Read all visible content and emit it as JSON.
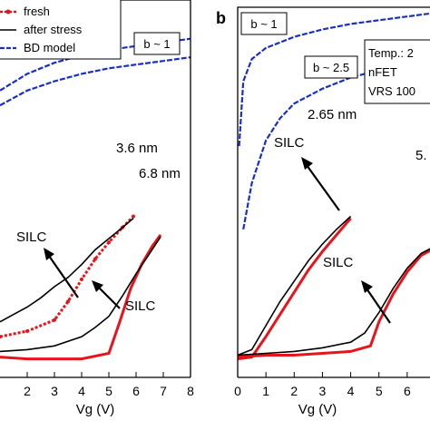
{
  "chart_data": [
    {
      "type": "line",
      "panel": "a",
      "xlabel": "Vg (V)",
      "xticks": [
        "2",
        "3",
        "4",
        "5",
        "6",
        "7",
        "8"
      ],
      "xlim": [
        1.0,
        8.0
      ],
      "legend": {
        "placement": "top-left",
        "entries": [
          "fresh",
          "after stress",
          "BD model"
        ],
        "colors": [
          "#e8141c",
          "#000000",
          "#1a2fc4"
        ]
      },
      "boxes": [
        {
          "text": "b ~ 1"
        }
      ],
      "annotations": [
        "3.6 nm",
        "6.8 nm",
        "SILC",
        "SILC"
      ],
      "series": [
        {
          "name": "fresh",
          "color": "#e8141c",
          "dashed": true,
          "points": [
            [
              1.0,
              0.22
            ],
            [
              2.0,
              0.25
            ],
            [
              3.0,
              0.31
            ],
            [
              3.5,
              0.41
            ],
            [
              4.0,
              0.53
            ],
            [
              4.5,
              0.64
            ],
            [
              5.0,
              0.73
            ],
            [
              5.5,
              0.81
            ],
            [
              5.9,
              0.87
            ]
          ]
        },
        {
          "name": "after stress",
          "color": "#000000",
          "points": [
            [
              1.0,
              0.3
            ],
            [
              1.5,
              0.34
            ],
            [
              2.0,
              0.38
            ],
            [
              2.5,
              0.43
            ],
            [
              3.0,
              0.49
            ],
            [
              3.5,
              0.54
            ],
            [
              4.0,
              0.61
            ],
            [
              4.5,
              0.69
            ],
            [
              5.0,
              0.75
            ],
            [
              5.5,
              0.81
            ],
            [
              5.9,
              0.86
            ]
          ]
        },
        {
          "name": "fresh",
          "color": "#e8141c",
          "dashed": false,
          "points": [
            [
              1.0,
              0.11
            ],
            [
              2.0,
              0.1
            ],
            [
              3.0,
              0.1
            ],
            [
              4.0,
              0.1
            ],
            [
              5.0,
              0.13
            ],
            [
              5.4,
              0.3
            ],
            [
              5.8,
              0.48
            ],
            [
              6.2,
              0.61
            ],
            [
              6.6,
              0.71
            ],
            [
              6.9,
              0.77
            ]
          ]
        },
        {
          "name": "after stress",
          "color": "#000000",
          "points": [
            [
              1.0,
              0.14
            ],
            [
              2.0,
              0.15
            ],
            [
              3.0,
              0.17
            ],
            [
              4.0,
              0.22
            ],
            [
              4.5,
              0.27
            ],
            [
              5.0,
              0.33
            ],
            [
              5.5,
              0.44
            ],
            [
              6.0,
              0.56
            ],
            [
              6.5,
              0.67
            ],
            [
              6.9,
              0.76
            ]
          ]
        },
        {
          "name": "BD model",
          "color": "#1a2fc4",
          "dashed": true,
          "points": [
            [
              1.0,
              1.55
            ],
            [
              2.0,
              1.64
            ],
            [
              3.0,
              1.7
            ],
            [
              4.0,
              1.74
            ],
            [
              5.0,
              1.77
            ],
            [
              6.0,
              1.79
            ],
            [
              7.0,
              1.81
            ],
            [
              8.0,
              1.83
            ]
          ]
        },
        {
          "name": "BD model",
          "color": "#1a2fc4",
          "dashed": true,
          "points": [
            [
              1.0,
              1.47
            ],
            [
              2.0,
              1.55
            ],
            [
              3.0,
              1.6
            ],
            [
              4.0,
              1.64
            ],
            [
              5.0,
              1.67
            ],
            [
              6.0,
              1.69
            ],
            [
              7.0,
              1.71
            ],
            [
              8.0,
              1.73
            ]
          ]
        }
      ]
    },
    {
      "type": "line",
      "panel": "b",
      "xlabel": "Vg (V)",
      "xticks": [
        "0",
        "1",
        "2",
        "3",
        "4",
        "5",
        "6"
      ],
      "xlim": [
        0.0,
        7.0
      ],
      "boxes": [
        {
          "text": "b ~ 1"
        },
        {
          "text": "b ~ 2.5"
        },
        {
          "text": "Temp.: 2"
        },
        {
          "text": "nFET"
        },
        {
          "text": "VRS 100"
        }
      ],
      "annotations": [
        "2.65 nm",
        "5.",
        "SILC",
        "SILC"
      ],
      "series": [
        {
          "name": "fresh",
          "color": "#e8141c",
          "points": [
            [
              0.0,
              0.1
            ],
            [
              0.5,
              0.11
            ],
            [
              1.0,
              0.22
            ],
            [
              1.5,
              0.34
            ],
            [
              2.0,
              0.46
            ],
            [
              2.5,
              0.58
            ],
            [
              3.0,
              0.68
            ],
            [
              3.5,
              0.77
            ],
            [
              4.0,
              0.86
            ]
          ]
        },
        {
          "name": "after stress",
          "color": "#000000",
          "points": [
            [
              0.0,
              0.12
            ],
            [
              0.5,
              0.15
            ],
            [
              1.0,
              0.28
            ],
            [
              1.5,
              0.41
            ],
            [
              2.0,
              0.52
            ],
            [
              2.5,
              0.63
            ],
            [
              3.0,
              0.72
            ],
            [
              3.5,
              0.8
            ],
            [
              4.0,
              0.87
            ]
          ]
        },
        {
          "name": "fresh",
          "color": "#e8141c",
          "points": [
            [
              0.0,
              0.11
            ],
            [
              1.0,
              0.12
            ],
            [
              2.0,
              0.12
            ],
            [
              3.0,
              0.13
            ],
            [
              4.0,
              0.14
            ],
            [
              4.7,
              0.17
            ],
            [
              5.0,
              0.3
            ],
            [
              5.5,
              0.45
            ],
            [
              6.0,
              0.57
            ],
            [
              6.5,
              0.66
            ],
            [
              7.0,
              0.7
            ]
          ]
        },
        {
          "name": "after stress",
          "color": "#000000",
          "points": [
            [
              0.0,
              0.12
            ],
            [
              1.0,
              0.13
            ],
            [
              2.0,
              0.14
            ],
            [
              3.0,
              0.16
            ],
            [
              4.0,
              0.19
            ],
            [
              4.5,
              0.24
            ],
            [
              5.0,
              0.35
            ],
            [
              5.5,
              0.48
            ],
            [
              6.0,
              0.59
            ],
            [
              6.5,
              0.67
            ],
            [
              7.0,
              0.71
            ]
          ]
        },
        {
          "name": "BD model",
          "color": "#1a2fc4",
          "dashed": true,
          "points": [
            [
              0.05,
              1.25
            ],
            [
              0.2,
              1.6
            ],
            [
              0.5,
              1.72
            ],
            [
              1.0,
              1.78
            ],
            [
              2.0,
              1.84
            ],
            [
              3.0,
              1.88
            ],
            [
              4.0,
              1.91
            ],
            [
              5.0,
              1.93
            ],
            [
              6.0,
              1.95
            ],
            [
              7.0,
              1.97
            ]
          ]
        },
        {
          "name": "BD model",
          "color": "#1a2fc4",
          "dashed": true,
          "points": [
            [
              0.2,
              0.8
            ],
            [
              0.5,
              1.05
            ],
            [
              1.0,
              1.28
            ],
            [
              1.5,
              1.4
            ],
            [
              2.0,
              1.48
            ],
            [
              3.0,
              1.56
            ],
            [
              4.0,
              1.62
            ],
            [
              5.0,
              1.66
            ],
            [
              6.0,
              1.69
            ],
            [
              7.0,
              1.71
            ]
          ]
        }
      ]
    }
  ]
}
